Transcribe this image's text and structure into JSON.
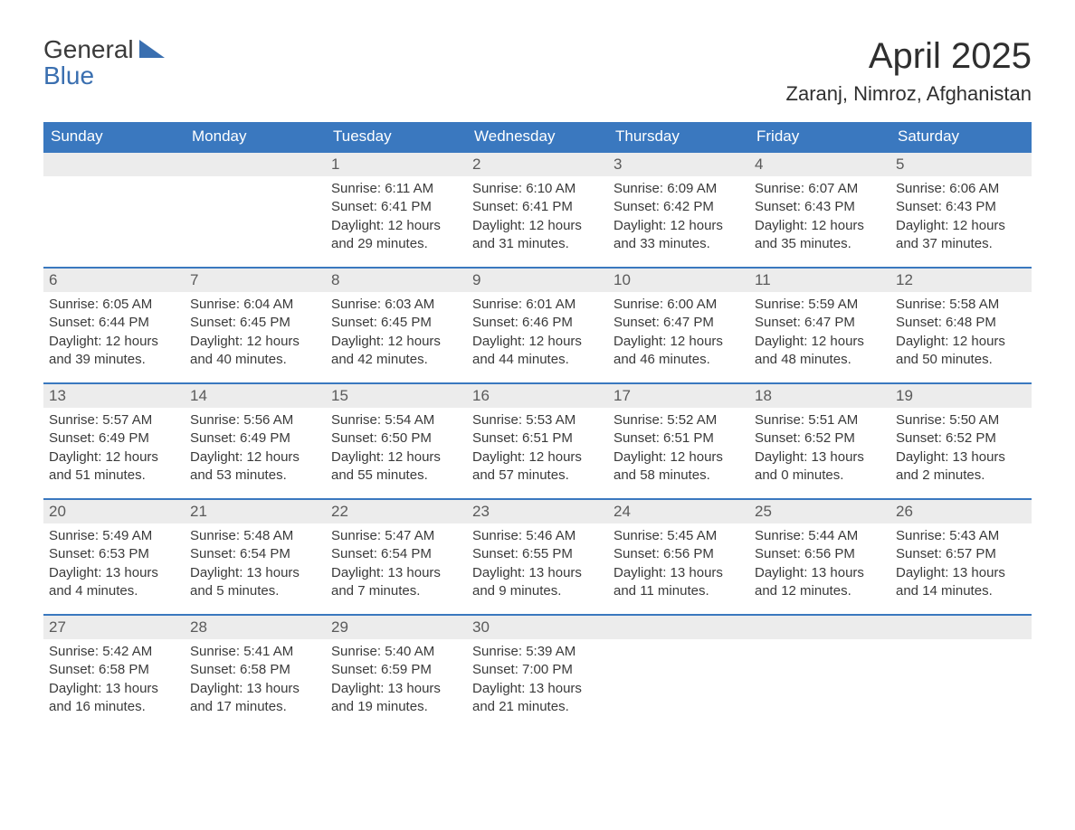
{
  "brand": {
    "word1": "General",
    "word2": "Blue",
    "accent_color": "#3a6fb0"
  },
  "title": "April 2025",
  "location": "Zaranj, Nimroz, Afghanistan",
  "colors": {
    "header_bg": "#3a78bf",
    "header_text": "#ffffff",
    "daynum_bg": "#ececec",
    "daynum_text": "#5a5a5a",
    "body_text": "#3a3a3a",
    "week_border": "#3a78bf",
    "page_bg": "#ffffff"
  },
  "typography": {
    "title_fontsize": 40,
    "location_fontsize": 22,
    "dow_fontsize": 17,
    "daynum_fontsize": 17,
    "body_fontsize": 15
  },
  "days_of_week": [
    "Sunday",
    "Monday",
    "Tuesday",
    "Wednesday",
    "Thursday",
    "Friday",
    "Saturday"
  ],
  "weeks": [
    [
      {
        "n": "",
        "sunrise": "",
        "sunset": "",
        "daylight": ""
      },
      {
        "n": "",
        "sunrise": "",
        "sunset": "",
        "daylight": ""
      },
      {
        "n": "1",
        "sunrise": "Sunrise: 6:11 AM",
        "sunset": "Sunset: 6:41 PM",
        "daylight": "Daylight: 12 hours and 29 minutes."
      },
      {
        "n": "2",
        "sunrise": "Sunrise: 6:10 AM",
        "sunset": "Sunset: 6:41 PM",
        "daylight": "Daylight: 12 hours and 31 minutes."
      },
      {
        "n": "3",
        "sunrise": "Sunrise: 6:09 AM",
        "sunset": "Sunset: 6:42 PM",
        "daylight": "Daylight: 12 hours and 33 minutes."
      },
      {
        "n": "4",
        "sunrise": "Sunrise: 6:07 AM",
        "sunset": "Sunset: 6:43 PM",
        "daylight": "Daylight: 12 hours and 35 minutes."
      },
      {
        "n": "5",
        "sunrise": "Sunrise: 6:06 AM",
        "sunset": "Sunset: 6:43 PM",
        "daylight": "Daylight: 12 hours and 37 minutes."
      }
    ],
    [
      {
        "n": "6",
        "sunrise": "Sunrise: 6:05 AM",
        "sunset": "Sunset: 6:44 PM",
        "daylight": "Daylight: 12 hours and 39 minutes."
      },
      {
        "n": "7",
        "sunrise": "Sunrise: 6:04 AM",
        "sunset": "Sunset: 6:45 PM",
        "daylight": "Daylight: 12 hours and 40 minutes."
      },
      {
        "n": "8",
        "sunrise": "Sunrise: 6:03 AM",
        "sunset": "Sunset: 6:45 PM",
        "daylight": "Daylight: 12 hours and 42 minutes."
      },
      {
        "n": "9",
        "sunrise": "Sunrise: 6:01 AM",
        "sunset": "Sunset: 6:46 PM",
        "daylight": "Daylight: 12 hours and 44 minutes."
      },
      {
        "n": "10",
        "sunrise": "Sunrise: 6:00 AM",
        "sunset": "Sunset: 6:47 PM",
        "daylight": "Daylight: 12 hours and 46 minutes."
      },
      {
        "n": "11",
        "sunrise": "Sunrise: 5:59 AM",
        "sunset": "Sunset: 6:47 PM",
        "daylight": "Daylight: 12 hours and 48 minutes."
      },
      {
        "n": "12",
        "sunrise": "Sunrise: 5:58 AM",
        "sunset": "Sunset: 6:48 PM",
        "daylight": "Daylight: 12 hours and 50 minutes."
      }
    ],
    [
      {
        "n": "13",
        "sunrise": "Sunrise: 5:57 AM",
        "sunset": "Sunset: 6:49 PM",
        "daylight": "Daylight: 12 hours and 51 minutes."
      },
      {
        "n": "14",
        "sunrise": "Sunrise: 5:56 AM",
        "sunset": "Sunset: 6:49 PM",
        "daylight": "Daylight: 12 hours and 53 minutes."
      },
      {
        "n": "15",
        "sunrise": "Sunrise: 5:54 AM",
        "sunset": "Sunset: 6:50 PM",
        "daylight": "Daylight: 12 hours and 55 minutes."
      },
      {
        "n": "16",
        "sunrise": "Sunrise: 5:53 AM",
        "sunset": "Sunset: 6:51 PM",
        "daylight": "Daylight: 12 hours and 57 minutes."
      },
      {
        "n": "17",
        "sunrise": "Sunrise: 5:52 AM",
        "sunset": "Sunset: 6:51 PM",
        "daylight": "Daylight: 12 hours and 58 minutes."
      },
      {
        "n": "18",
        "sunrise": "Sunrise: 5:51 AM",
        "sunset": "Sunset: 6:52 PM",
        "daylight": "Daylight: 13 hours and 0 minutes."
      },
      {
        "n": "19",
        "sunrise": "Sunrise: 5:50 AM",
        "sunset": "Sunset: 6:52 PM",
        "daylight": "Daylight: 13 hours and 2 minutes."
      }
    ],
    [
      {
        "n": "20",
        "sunrise": "Sunrise: 5:49 AM",
        "sunset": "Sunset: 6:53 PM",
        "daylight": "Daylight: 13 hours and 4 minutes."
      },
      {
        "n": "21",
        "sunrise": "Sunrise: 5:48 AM",
        "sunset": "Sunset: 6:54 PM",
        "daylight": "Daylight: 13 hours and 5 minutes."
      },
      {
        "n": "22",
        "sunrise": "Sunrise: 5:47 AM",
        "sunset": "Sunset: 6:54 PM",
        "daylight": "Daylight: 13 hours and 7 minutes."
      },
      {
        "n": "23",
        "sunrise": "Sunrise: 5:46 AM",
        "sunset": "Sunset: 6:55 PM",
        "daylight": "Daylight: 13 hours and 9 minutes."
      },
      {
        "n": "24",
        "sunrise": "Sunrise: 5:45 AM",
        "sunset": "Sunset: 6:56 PM",
        "daylight": "Daylight: 13 hours and 11 minutes."
      },
      {
        "n": "25",
        "sunrise": "Sunrise: 5:44 AM",
        "sunset": "Sunset: 6:56 PM",
        "daylight": "Daylight: 13 hours and 12 minutes."
      },
      {
        "n": "26",
        "sunrise": "Sunrise: 5:43 AM",
        "sunset": "Sunset: 6:57 PM",
        "daylight": "Daylight: 13 hours and 14 minutes."
      }
    ],
    [
      {
        "n": "27",
        "sunrise": "Sunrise: 5:42 AM",
        "sunset": "Sunset: 6:58 PM",
        "daylight": "Daylight: 13 hours and 16 minutes."
      },
      {
        "n": "28",
        "sunrise": "Sunrise: 5:41 AM",
        "sunset": "Sunset: 6:58 PM",
        "daylight": "Daylight: 13 hours and 17 minutes."
      },
      {
        "n": "29",
        "sunrise": "Sunrise: 5:40 AM",
        "sunset": "Sunset: 6:59 PM",
        "daylight": "Daylight: 13 hours and 19 minutes."
      },
      {
        "n": "30",
        "sunrise": "Sunrise: 5:39 AM",
        "sunset": "Sunset: 7:00 PM",
        "daylight": "Daylight: 13 hours and 21 minutes."
      },
      {
        "n": "",
        "sunrise": "",
        "sunset": "",
        "daylight": ""
      },
      {
        "n": "",
        "sunrise": "",
        "sunset": "",
        "daylight": ""
      },
      {
        "n": "",
        "sunrise": "",
        "sunset": "",
        "daylight": ""
      }
    ]
  ]
}
